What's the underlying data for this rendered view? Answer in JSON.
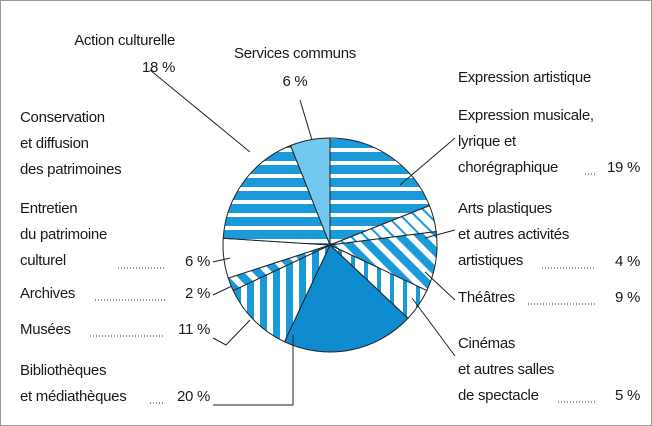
{
  "chart_data": {
    "type": "pie",
    "headings": [
      "Expression artistique",
      "Conservation\net diffusion\ndes patrimoines"
    ],
    "categories": [
      "Expression musicale,\nlyrique et\nchorégraphique",
      "Arts plastiques\net autres activités\nartistiques",
      "Théâtres",
      "Cinémas\net autres salles\nde spectacle",
      "Bibliothèques\net médiathèques",
      "Musées",
      "Archives",
      "Entretien\ndu patrimoine\nculturel",
      "Action culturelle",
      "Services communs"
    ],
    "values": [
      19,
      4,
      9,
      5,
      20,
      11,
      2,
      6,
      18,
      6
    ],
    "value_labels": [
      "19 %",
      "4 %",
      "9 %",
      "5 %",
      "20 %",
      "11 %",
      "2 %",
      "6 %",
      "18 %",
      "6 %"
    ],
    "patterns": [
      "horizontal",
      "diagonal-light",
      "diagonal",
      "vertical-light",
      "solid",
      "vertical",
      "diagonal",
      "solid",
      "horizontal",
      "solid"
    ],
    "colors": [
      "#1a9ad8",
      "#1a9ad8",
      "#1a9ad8",
      "#1a9ad8",
      "#0f8bd0",
      "#1a9ad8",
      "#1a9ad8",
      "#ffffff",
      "#1a9ad8",
      "#72c9ef"
    ]
  }
}
